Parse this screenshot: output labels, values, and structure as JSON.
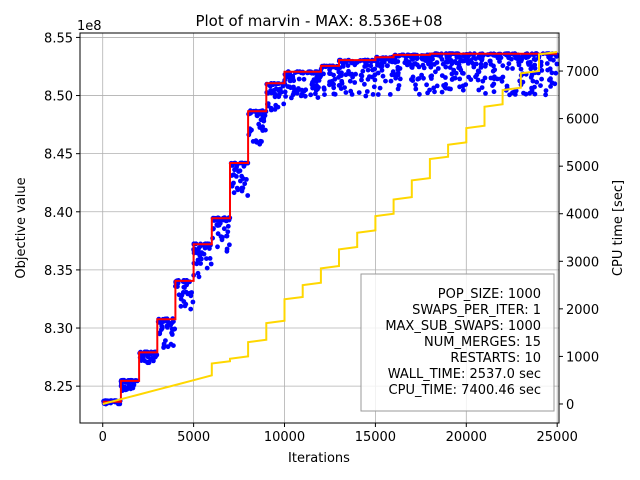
{
  "chart_data": {
    "type": "line",
    "title": "Plot of marvin - MAX: 8.536E+08",
    "xlabel": "Iterations",
    "ylabel": "Objective value",
    "y2label": "CPU time [sec]",
    "y_offset_text": "1e8",
    "xlim": [
      -1250,
      25100
    ],
    "ylim": [
      8.2183,
      8.5538
    ],
    "y2lim": [
      -400,
      7800
    ],
    "x_ticks": [
      0,
      5000,
      10000,
      15000,
      20000,
      25000
    ],
    "x_tick_labels": [
      "0",
      "5000",
      "10000",
      "15000",
      "20000",
      "25000"
    ],
    "y_ticks": [
      8.25,
      8.3,
      8.35,
      8.4,
      8.45,
      8.5,
      8.55
    ],
    "y_tick_labels": [
      "8.25",
      "8.30",
      "8.35",
      "8.40",
      "8.45",
      "8.50",
      "8.55"
    ],
    "y2_ticks": [
      0,
      1000,
      2000,
      3000,
      4000,
      5000,
      6000,
      7000
    ],
    "y2_tick_labels": [
      "0",
      "1000",
      "2000",
      "3000",
      "4000",
      "5000",
      "6000",
      "7000"
    ],
    "grid": true,
    "colors": {
      "best": "#ff0000",
      "population": "#0000ff",
      "cpu": "#ffd700"
    },
    "best_objective": {
      "x": [
        0,
        1000,
        1000,
        2000,
        2000,
        3000,
        3000,
        4000,
        4000,
        5000,
        5000,
        6000,
        6000,
        7000,
        7000,
        8000,
        8000,
        9000,
        9000,
        10000,
        10000,
        12000,
        12000,
        13000,
        13000,
        15000,
        15000,
        16000,
        16000,
        18000,
        18000,
        25000
      ],
      "y": [
        8.2365,
        8.2365,
        8.2545,
        8.2545,
        8.279,
        8.279,
        8.3075,
        8.3075,
        8.3405,
        8.3405,
        8.372,
        8.372,
        8.3945,
        8.3945,
        8.442,
        8.442,
        8.4865,
        8.4865,
        8.5105,
        8.5105,
        8.5205,
        8.5205,
        8.5255,
        8.5255,
        8.5305,
        8.5305,
        8.533,
        8.533,
        8.535,
        8.535,
        8.536,
        8.536
      ]
    },
    "population_spread": [
      {
        "x0": 0,
        "x1": 1000,
        "low": 8.2345,
        "high": 8.2375
      },
      {
        "x0": 1000,
        "x1": 2000,
        "low": 8.246,
        "high": 8.255
      },
      {
        "x0": 2000,
        "x1": 3000,
        "low": 8.27,
        "high": 8.2795
      },
      {
        "x0": 3000,
        "x1": 4000,
        "low": 8.282,
        "high": 8.308
      },
      {
        "x0": 4000,
        "x1": 5000,
        "low": 8.316,
        "high": 8.341
      },
      {
        "x0": 5000,
        "x1": 6000,
        "low": 8.344,
        "high": 8.3725
      },
      {
        "x0": 6000,
        "x1": 7000,
        "low": 8.365,
        "high": 8.395
      },
      {
        "x0": 7000,
        "x1": 8000,
        "low": 8.413,
        "high": 8.442
      },
      {
        "x0": 8000,
        "x1": 9000,
        "low": 8.456,
        "high": 8.487
      },
      {
        "x0": 9000,
        "x1": 10000,
        "low": 8.487,
        "high": 8.5105
      },
      {
        "x0": 10000,
        "x1": 12000,
        "low": 8.496,
        "high": 8.5205
      },
      {
        "x0": 12000,
        "x1": 13000,
        "low": 8.497,
        "high": 8.5255
      },
      {
        "x0": 13000,
        "x1": 15000,
        "low": 8.498,
        "high": 8.5305
      },
      {
        "x0": 15000,
        "x1": 16000,
        "low": 8.5,
        "high": 8.533
      },
      {
        "x0": 16000,
        "x1": 18000,
        "low": 8.5,
        "high": 8.535
      },
      {
        "x0": 18000,
        "x1": 25000,
        "low": 8.5,
        "high": 8.536
      }
    ],
    "cpu_time": {
      "x": [
        0,
        1000,
        2000,
        3000,
        4000,
        5000,
        6000,
        6000,
        7000,
        7000,
        8000,
        8000,
        9000,
        9000,
        10000,
        10000,
        11000,
        11000,
        12000,
        12000,
        13000,
        13000,
        14000,
        14000,
        15000,
        15000,
        16000,
        16000,
        17000,
        17000,
        18000,
        18000,
        19000,
        19000,
        20000,
        20000,
        21000,
        21000,
        22000,
        22000,
        23000,
        23000,
        24000,
        24000,
        25000
      ],
      "y": [
        0,
        100,
        200,
        300,
        400,
        500,
        600,
        850,
        900,
        950,
        1000,
        1300,
        1350,
        1700,
        1750,
        2200,
        2250,
        2500,
        2550,
        2850,
        2900,
        3250,
        3300,
        3600,
        3650,
        3950,
        4000,
        4300,
        4350,
        4700,
        4750,
        5150,
        5200,
        5450,
        5500,
        5800,
        5850,
        6250,
        6300,
        6600,
        6650,
        6950,
        7000,
        7350,
        7400
      ]
    }
  },
  "stats": {
    "lines": [
      "POP_SIZE: 1000",
      "SWAPS_PER_ITER: 1",
      "MAX_SUB_SWAPS: 1000",
      "NUM_MERGES: 15",
      "RESTARTS: 10",
      "WALL_TIME: 2537.0 sec",
      "CPU_TIME: 7400.46 sec"
    ]
  }
}
